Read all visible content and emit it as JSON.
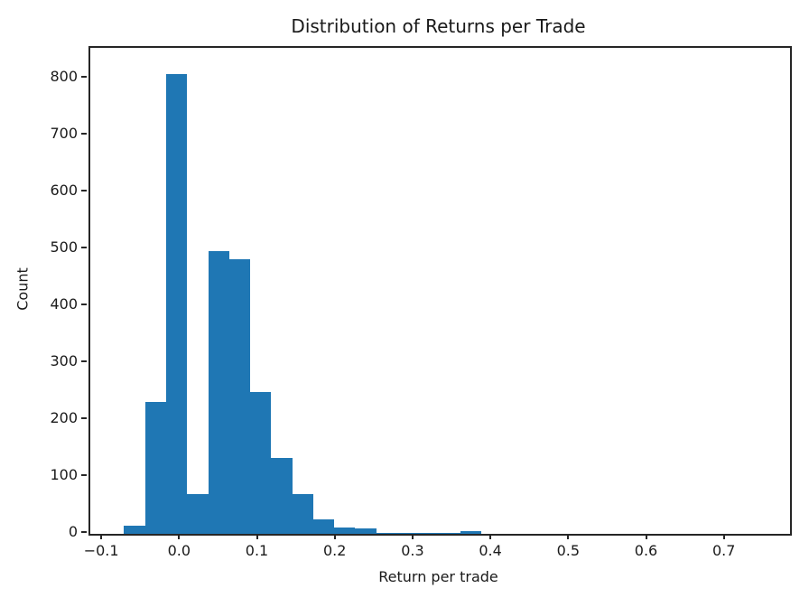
{
  "chart_data": {
    "type": "bar",
    "subtype": "histogram",
    "title": "Distribution of Returns per Trade",
    "xlabel": "Return per trade",
    "ylabel": "Count",
    "bar_color": "#1f77b4",
    "background_color": "#ffffff",
    "grid": false,
    "legend": "none",
    "bin_start": -0.073,
    "bin_width": 0.027,
    "counts": [
      15,
      232,
      808,
      70,
      497,
      482,
      249,
      133,
      70,
      25,
      11,
      10,
      2,
      1,
      1,
      1,
      4
    ],
    "xlim": [
      -0.1164,
      0.7827
    ],
    "ylim": [
      0,
      854
    ],
    "x_ticks": [
      {
        "value": -0.1,
        "label": "−0.1"
      },
      {
        "value": 0.0,
        "label": "0.0"
      },
      {
        "value": 0.1,
        "label": "0.1"
      },
      {
        "value": 0.2,
        "label": "0.2"
      },
      {
        "value": 0.3,
        "label": "0.3"
      },
      {
        "value": 0.4,
        "label": "0.4"
      },
      {
        "value": 0.5,
        "label": "0.5"
      },
      {
        "value": 0.6,
        "label": "0.6"
      },
      {
        "value": 0.7,
        "label": "0.7"
      }
    ],
    "y_ticks": [
      {
        "value": 0,
        "label": "0"
      },
      {
        "value": 100,
        "label": "100"
      },
      {
        "value": 200,
        "label": "200"
      },
      {
        "value": 300,
        "label": "300"
      },
      {
        "value": 400,
        "label": "400"
      },
      {
        "value": 500,
        "label": "500"
      },
      {
        "value": 600,
        "label": "600"
      },
      {
        "value": 700,
        "label": "700"
      },
      {
        "value": 800,
        "label": "800"
      }
    ]
  }
}
